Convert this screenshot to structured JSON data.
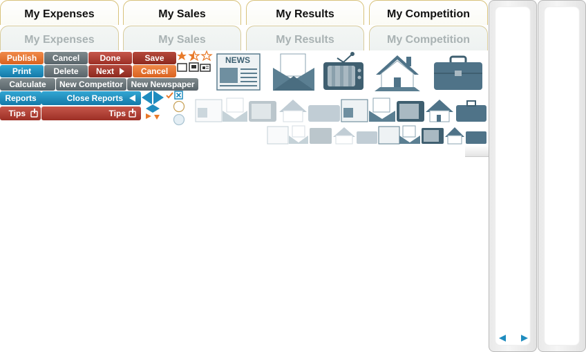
{
  "tabs_active": [
    {
      "label": "My Expenses"
    },
    {
      "label": "My Sales"
    },
    {
      "label": "My Results"
    },
    {
      "label": "My Competition"
    }
  ],
  "tabs_inactive": [
    {
      "label": "My Expenses"
    },
    {
      "label": "My Sales"
    },
    {
      "label": "My Results"
    },
    {
      "label": "My Competition"
    }
  ],
  "buttons": {
    "publish": "Publish",
    "cancel": "Cancel",
    "done": "Done",
    "save": "Save",
    "print": "Print",
    "delete": "Delete",
    "next": "Next",
    "cancel_red": "Cancel",
    "calculate": "Calculate",
    "new_competitor": "New Competitor",
    "new_newspaper": "New Newspaper",
    "reports": "Reports",
    "close_reports": "Close Reports",
    "tips": "Tips",
    "tips_wide": "Tips"
  },
  "newspaper_label": "NEWS",
  "rating": {
    "value": 1.5,
    "max": 3
  },
  "icons": [
    "newspaper-icon",
    "envelope-icon",
    "tv-icon",
    "house-icon",
    "briefcase-icon"
  ],
  "colors": {
    "orange": "#e06c2a",
    "blue": "#1f8cbf",
    "red": "#a8382c",
    "icon": "#4f7388"
  }
}
